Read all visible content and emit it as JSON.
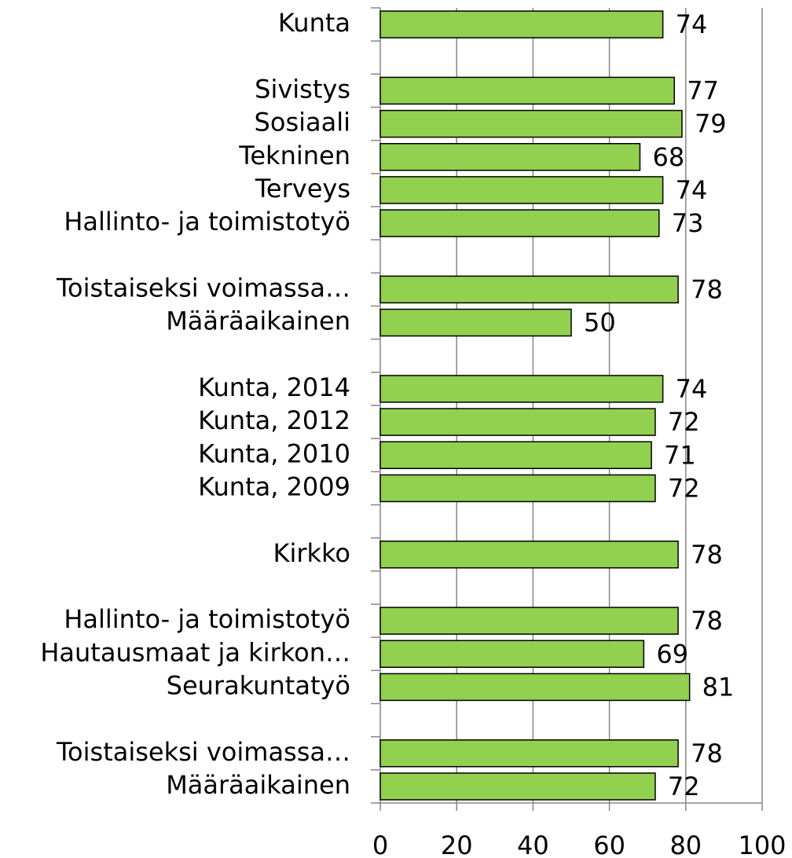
{
  "chart_data": {
    "type": "barh",
    "categories": [
      "Kunta",
      null,
      "Sivistys",
      "Sosiaali",
      "Tekninen",
      "Terveys",
      "Hallinto- ja toimistotyö",
      null,
      "Toistaiseksi voimassa…",
      "Määräaikainen",
      null,
      "Kunta, 2014",
      "Kunta, 2012",
      "Kunta, 2010",
      "Kunta, 2009",
      null,
      "Kirkko",
      null,
      "Hallinto- ja toimistotyö",
      "Hautausmaat ja kirkon…",
      "Seurakuntatyö",
      null,
      "Toistaiseksi voimassa…",
      "Määräaikainen"
    ],
    "values": [
      74,
      null,
      77,
      79,
      68,
      74,
      73,
      null,
      78,
      50,
      null,
      74,
      72,
      71,
      72,
      null,
      78,
      null,
      78,
      69,
      81,
      null,
      78,
      72
    ],
    "color": "#92d050",
    "xlim": [
      0,
      100
    ],
    "xticks": [
      0,
      20,
      40,
      60,
      80,
      100
    ],
    "grid": true
  }
}
